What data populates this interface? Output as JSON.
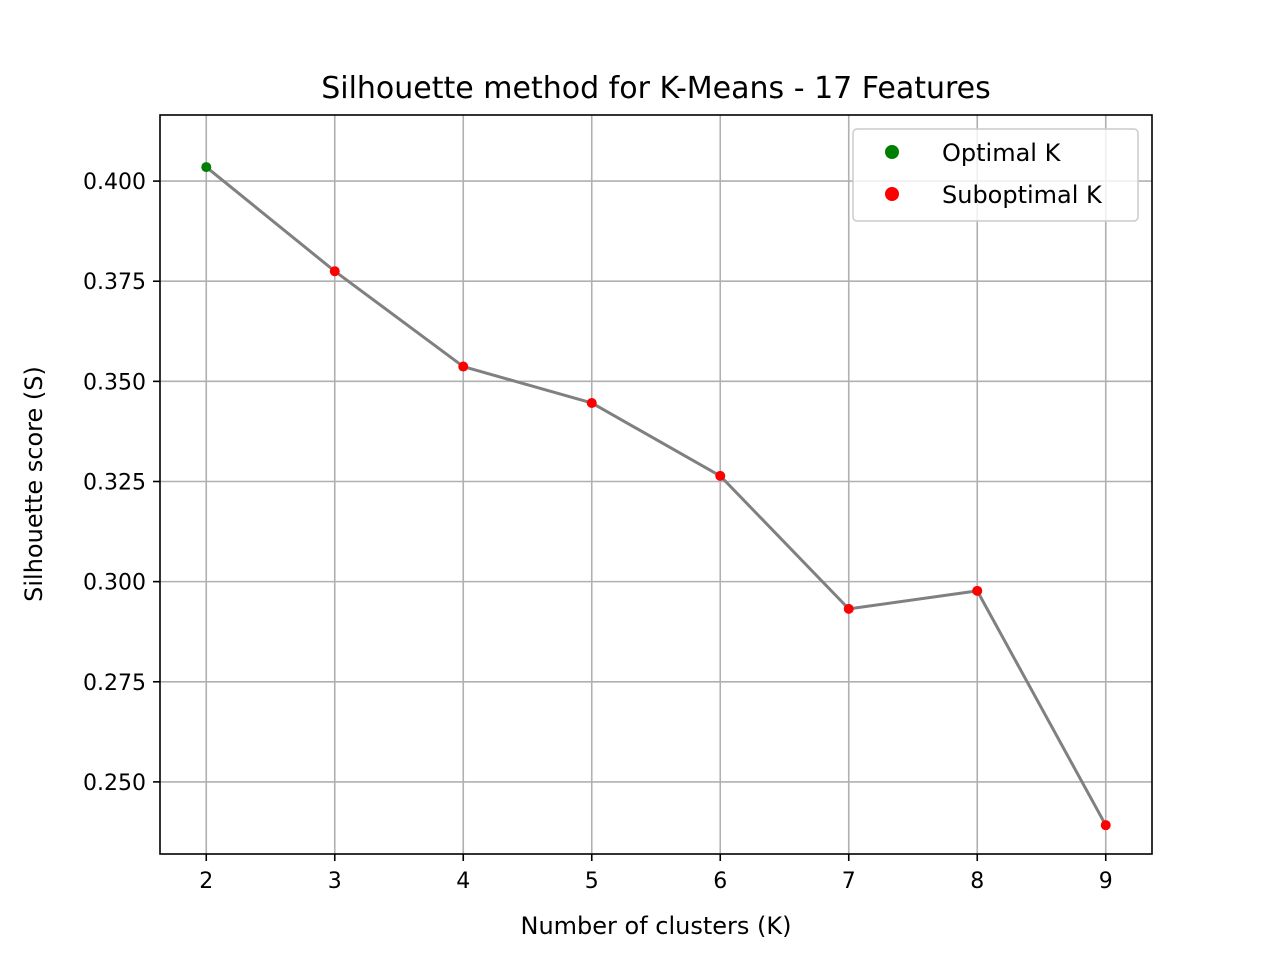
{
  "chart_data": {
    "type": "line",
    "title": "Silhouette method for K-Means - 17 Features",
    "xlabel": "Number of clusters (K)",
    "ylabel": "Silhouette score (S)",
    "x": [
      2,
      3,
      4,
      5,
      6,
      7,
      8,
      9
    ],
    "values": [
      0.4035,
      0.3775,
      0.3537,
      0.3446,
      0.3264,
      0.2932,
      0.2977,
      0.2392
    ],
    "optimal_index": 0,
    "xlim": [
      1.64,
      9.36
    ],
    "ylim": [
      0.232,
      0.4165
    ],
    "xticks": [
      2,
      3,
      4,
      5,
      6,
      7,
      8,
      9
    ],
    "xtick_labels": [
      "2",
      "3",
      "4",
      "5",
      "6",
      "7",
      "8",
      "9"
    ],
    "yticks": [
      0.25,
      0.275,
      0.3,
      0.325,
      0.35,
      0.375,
      0.4
    ],
    "ytick_labels": [
      "0.250",
      "0.275",
      "0.300",
      "0.325",
      "0.350",
      "0.375",
      "0.400"
    ],
    "grid": true,
    "legend_position": "upper-right",
    "legend": [
      {
        "label": "Optimal K",
        "color": "#008000"
      },
      {
        "label": "Suboptimal K",
        "color": "#ff0000"
      }
    ],
    "line_color": "#808080",
    "grid_color": "#b0b0b0"
  }
}
